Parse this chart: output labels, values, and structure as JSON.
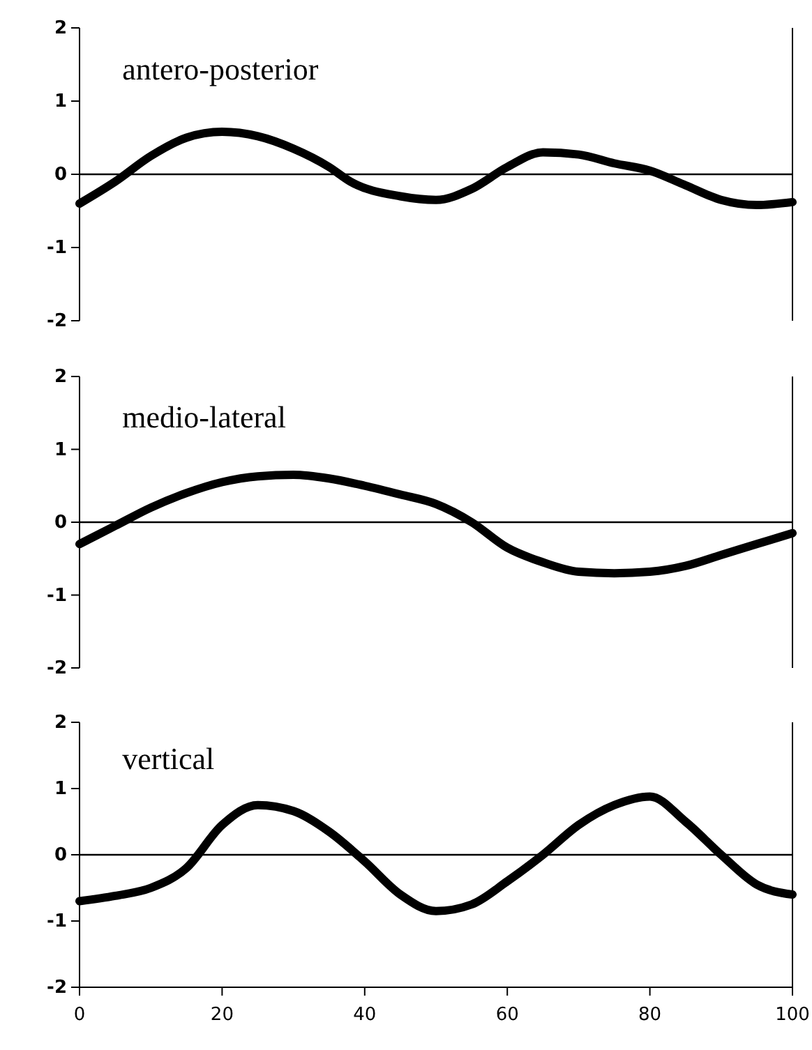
{
  "chart_data": [
    {
      "type": "line",
      "title": "antero-posterior",
      "x": [
        0,
        5,
        10,
        15,
        20,
        25,
        30,
        35,
        38,
        45,
        50,
        55,
        60,
        65,
        70,
        75,
        80,
        85,
        90,
        95,
        100
      ],
      "series": [
        {
          "color": "#000000",
          "values": [
            -0.4,
            -0.1,
            0.25,
            0.5,
            0.58,
            0.52,
            0.35,
            0.1,
            -0.1,
            -0.3,
            -0.35,
            -0.2,
            0.1,
            0.3,
            0.27,
            0.15,
            0.05,
            -0.15,
            -0.35,
            -0.42,
            -0.38
          ]
        }
      ],
      "xlim": [
        0,
        100
      ],
      "ylim": [
        -2,
        2
      ],
      "yticks": [
        -2,
        -1,
        0,
        1,
        2
      ],
      "tick_labels": "y",
      "ref_lines": [
        {
          "axis": "y",
          "value": 0
        }
      ],
      "grid": false
    },
    {
      "type": "line",
      "title": "medio-lateral",
      "x": [
        0,
        5,
        10,
        15,
        20,
        25,
        30,
        35,
        40,
        45,
        50,
        55,
        60,
        65,
        70,
        75,
        80,
        85,
        90,
        95,
        100
      ],
      "series": [
        {
          "color": "#000000",
          "values": [
            -0.3,
            -0.05,
            0.2,
            0.4,
            0.55,
            0.63,
            0.65,
            0.6,
            0.5,
            0.38,
            0.25,
            0.0,
            -0.35,
            -0.55,
            -0.68,
            -0.7,
            -0.68,
            -0.6,
            -0.45,
            -0.3,
            -0.15
          ]
        }
      ],
      "xlim": [
        0,
        100
      ],
      "ylim": [
        -2,
        2
      ],
      "yticks": [
        -2,
        -1,
        0,
        1,
        2
      ],
      "tick_labels": "y",
      "ref_lines": [
        {
          "axis": "y",
          "value": 0
        }
      ],
      "grid": false
    },
    {
      "type": "line",
      "title": "vertical",
      "x": [
        0,
        5,
        10,
        15,
        20,
        25,
        30,
        35,
        40,
        45,
        50,
        55,
        60,
        65,
        70,
        75,
        80,
        85,
        90,
        95,
        100
      ],
      "series": [
        {
          "color": "#000000",
          "values": [
            -0.7,
            -0.62,
            -0.5,
            -0.2,
            0.45,
            0.75,
            0.66,
            0.35,
            -0.1,
            -0.6,
            -0.85,
            -0.75,
            -0.4,
            0.0,
            0.45,
            0.75,
            0.88,
            0.5,
            0.0,
            -0.45,
            -0.6
          ]
        }
      ],
      "xlim": [
        0,
        100
      ],
      "xticks": [
        0,
        20,
        40,
        60,
        80,
        100
      ],
      "ylim": [
        -2,
        2
      ],
      "yticks": [
        -2,
        -1,
        0,
        1,
        2
      ],
      "ref_lines": [
        {
          "axis": "y",
          "value": 0
        }
      ],
      "grid": false
    }
  ]
}
